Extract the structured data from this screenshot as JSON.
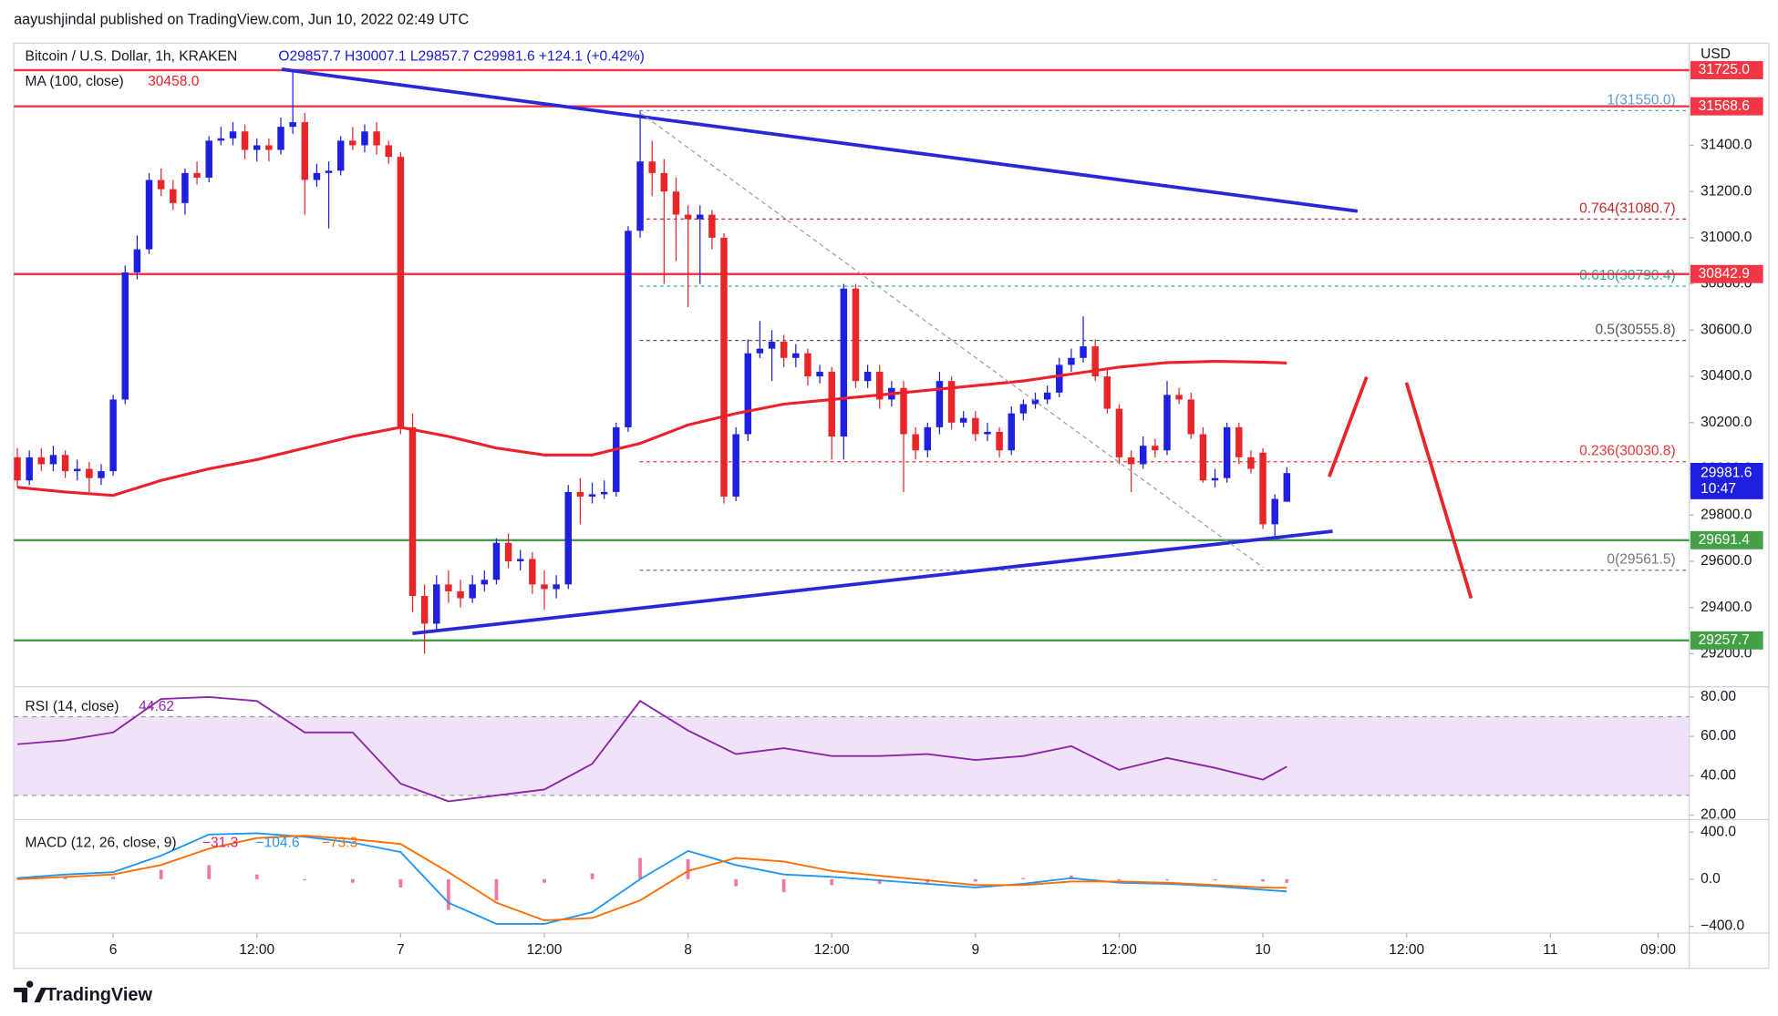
{
  "header": {
    "published": "aayushjindal published on TradingView.com, Jun 10, 2022 02:49 UTC",
    "footer": "TradingView"
  },
  "chart_data": [
    {
      "type": "candlestick",
      "symbol": "Bitcoin / U.S. Dollar, 1h, KRAKEN",
      "ohlc_legend": "O29857.7 H30007.1 L29857.7 C29981.6 +124.1 (+0.42%)",
      "currency": "USD",
      "up_color": "#1f1fe0",
      "down_color": "#e8262a",
      "candles": [
        [
          30050,
          30090,
          29920,
          29950
        ],
        [
          29950,
          30080,
          29930,
          30050
        ],
        [
          30050,
          30090,
          29990,
          30020
        ],
        [
          30020,
          30100,
          29990,
          30060
        ],
        [
          30060,
          30080,
          29960,
          29990
        ],
        [
          29990,
          30040,
          29950,
          30000
        ],
        [
          30000,
          30030,
          29900,
          29960
        ],
        [
          29960,
          30020,
          29930,
          29990
        ],
        [
          29990,
          30320,
          29970,
          30300
        ],
        [
          30300,
          30880,
          30280,
          30850
        ],
        [
          30850,
          31010,
          30820,
          30950
        ],
        [
          30950,
          31280,
          30930,
          31250
        ],
        [
          31250,
          31300,
          31180,
          31210
        ],
        [
          31210,
          31250,
          31120,
          31150
        ],
        [
          31150,
          31300,
          31100,
          31280
        ],
        [
          31280,
          31330,
          31230,
          31260
        ],
        [
          31260,
          31440,
          31240,
          31420
        ],
        [
          31420,
          31480,
          31400,
          31430
        ],
        [
          31430,
          31500,
          31400,
          31460
        ],
        [
          31460,
          31490,
          31340,
          31380
        ],
        [
          31380,
          31430,
          31330,
          31400
        ],
        [
          31400,
          31430,
          31330,
          31380
        ],
        [
          31380,
          31520,
          31360,
          31480
        ],
        [
          31480,
          31720,
          31450,
          31500
        ],
        [
          31500,
          31540,
          31100,
          31250
        ],
        [
          31250,
          31320,
          31220,
          31280
        ],
        [
          31280,
          31330,
          31040,
          31290
        ],
        [
          31290,
          31440,
          31270,
          31420
        ],
        [
          31420,
          31480,
          31380,
          31400
        ],
        [
          31400,
          31490,
          31370,
          31460
        ],
        [
          31460,
          31500,
          31360,
          31400
        ],
        [
          31400,
          31420,
          31320,
          31350
        ],
        [
          31350,
          31370,
          30150,
          30180
        ],
        [
          30180,
          30240,
          29380,
          29450
        ],
        [
          29450,
          29500,
          29200,
          29330
        ],
        [
          29330,
          29540,
          29300,
          29500
        ],
        [
          29500,
          29560,
          29420,
          29470
        ],
        [
          29470,
          29520,
          29400,
          29440
        ],
        [
          29440,
          29540,
          29420,
          29500
        ],
        [
          29500,
          29560,
          29470,
          29520
        ],
        [
          29520,
          29700,
          29500,
          29680
        ],
        [
          29680,
          29720,
          29570,
          29600
        ],
        [
          29600,
          29650,
          29560,
          29610
        ],
        [
          29610,
          29640,
          29460,
          29500
        ],
        [
          29500,
          29560,
          29390,
          29480
        ],
        [
          29480,
          29540,
          29440,
          29500
        ],
        [
          29500,
          29930,
          29480,
          29900
        ],
        [
          29900,
          29960,
          29760,
          29880
        ],
        [
          29880,
          29940,
          29850,
          29890
        ],
        [
          29890,
          29950,
          29870,
          29900
        ],
        [
          29900,
          30200,
          29880,
          30180
        ],
        [
          30180,
          31050,
          30160,
          31030
        ],
        [
          31030,
          31550,
          31000,
          31330
        ],
        [
          31330,
          31420,
          31180,
          31280
        ],
        [
          31280,
          31340,
          30800,
          31200
        ],
        [
          31200,
          31260,
          30900,
          31100
        ],
        [
          31100,
          31140,
          30700,
          31080
        ],
        [
          31080,
          31140,
          30800,
          31100
        ],
        [
          31100,
          31120,
          30950,
          31000
        ],
        [
          31000,
          31020,
          29850,
          29880
        ],
        [
          29880,
          30180,
          29860,
          30150
        ],
        [
          30150,
          30560,
          30120,
          30500
        ],
        [
          30500,
          30640,
          30480,
          30520
        ],
        [
          30520,
          30600,
          30380,
          30550
        ],
        [
          30550,
          30580,
          30440,
          30480
        ],
        [
          30480,
          30540,
          30440,
          30500
        ],
        [
          30500,
          30520,
          30360,
          30400
        ],
        [
          30400,
          30450,
          30370,
          30420
        ],
        [
          30420,
          30440,
          30040,
          30140
        ],
        [
          30140,
          30800,
          30040,
          30780
        ],
        [
          30780,
          30800,
          30350,
          30380
        ],
        [
          30380,
          30450,
          30350,
          30420
        ],
        [
          30420,
          30450,
          30260,
          30300
        ],
        [
          30300,
          30380,
          30270,
          30350
        ],
        [
          30350,
          30380,
          29900,
          30150
        ],
        [
          30150,
          30180,
          30040,
          30080
        ],
        [
          30080,
          30200,
          30050,
          30180
        ],
        [
          30180,
          30420,
          30150,
          30380
        ],
        [
          30380,
          30400,
          30170,
          30200
        ],
        [
          30200,
          30250,
          30180,
          30220
        ],
        [
          30220,
          30250,
          30120,
          30150
        ],
        [
          30150,
          30200,
          30120,
          30160
        ],
        [
          30160,
          30180,
          30050,
          30080
        ],
        [
          30080,
          30270,
          30060,
          30240
        ],
        [
          30240,
          30300,
          30210,
          30280
        ],
        [
          30280,
          30330,
          30260,
          30300
        ],
        [
          30300,
          30360,
          30280,
          30330
        ],
        [
          30330,
          30480,
          30310,
          30450
        ],
        [
          30450,
          30520,
          30420,
          30480
        ],
        [
          30480,
          30660,
          30460,
          30530
        ],
        [
          30530,
          30560,
          30380,
          30400
        ],
        [
          30400,
          30430,
          30240,
          30260
        ],
        [
          30260,
          30280,
          30020,
          30050
        ],
        [
          30050,
          30080,
          29900,
          30020
        ],
        [
          30020,
          30140,
          30000,
          30100
        ],
        [
          30100,
          30130,
          30050,
          30080
        ],
        [
          30080,
          30380,
          30060,
          30320
        ],
        [
          30320,
          30350,
          30280,
          30300
        ],
        [
          30300,
          30330,
          30130,
          30150
        ],
        [
          30150,
          30180,
          29940,
          29950
        ],
        [
          29950,
          30000,
          29920,
          29960
        ],
        [
          29960,
          30200,
          29940,
          30180
        ],
        [
          30180,
          30200,
          30020,
          30050
        ],
        [
          30050,
          30080,
          29980,
          30000
        ],
        [
          30070,
          30090,
          29740,
          29760
        ],
        [
          29760,
          29890,
          29700,
          29870
        ],
        [
          29857.7,
          30007.1,
          29857.7,
          29981.6
        ]
      ],
      "xlim": [
        -0.3,
        139.6
      ],
      "xticks": [
        {
          "value": 8,
          "label": "6"
        },
        {
          "value": 20,
          "label": "12:00"
        },
        {
          "value": 32,
          "label": "7"
        },
        {
          "value": 44,
          "label": "12:00"
        },
        {
          "value": 56,
          "label": "8"
        },
        {
          "value": 68,
          "label": "12:00"
        },
        {
          "value": 80,
          "label": "9"
        },
        {
          "value": 92,
          "label": "12:00"
        },
        {
          "value": 104,
          "label": "10"
        },
        {
          "value": 116,
          "label": "12:00"
        },
        {
          "value": 128,
          "label": "11"
        },
        {
          "value": 137,
          "label": "09:00"
        }
      ],
      "ylim": [
        29057,
        31842
      ],
      "yticks": [
        {
          "value": 29200,
          "label": "29200.0"
        },
        {
          "value": 29400,
          "label": "29400.0"
        },
        {
          "value": 29600,
          "label": "29600.0"
        },
        {
          "value": 29800,
          "label": "29800.0"
        },
        {
          "value": 30000,
          "label": "30000.0"
        },
        {
          "value": 30200,
          "label": "30200.0"
        },
        {
          "value": 30400,
          "label": "30400.0"
        },
        {
          "value": 30600,
          "label": "30600.0"
        },
        {
          "value": 30800,
          "label": "30800.0"
        },
        {
          "value": 31000,
          "label": "31000.0"
        },
        {
          "value": 31200,
          "label": "31200.0"
        },
        {
          "value": 31400,
          "label": "31400.0"
        }
      ],
      "levels": [
        {
          "value": 31725,
          "label": "31725.0",
          "color": "#f23645"
        },
        {
          "value": 31568.6,
          "color": "#f23645"
        },
        {
          "value": 30842.9,
          "color": "#f23645"
        },
        {
          "value": 29691.4,
          "color": "#43a047"
        },
        {
          "value": 29257.7,
          "color": "#43a047"
        }
      ],
      "fib": [
        {
          "value": 31550.0,
          "label": "1(31550.0)",
          "color": "#5b9bd5"
        },
        {
          "value": 31080.7,
          "label": "0.764(31080.7)",
          "color": "#c62828"
        },
        {
          "value": 30790.4,
          "label": "0.618(30790.4)",
          "color": "#26a69a"
        },
        {
          "value": 30555.8,
          "label": "0.5(30555.8)",
          "color": "#555555"
        },
        {
          "value": 30030.8,
          "label": "0.236(30030.8)",
          "color": "#e53935"
        },
        {
          "value": 29561.5,
          "label": "0(29561.5)",
          "color": "#777777"
        }
      ],
      "last_price": {
        "value": 29981.6,
        "countdown": "10:47",
        "color": "#1f1fe0"
      },
      "ma": {
        "name": "MA (100, close)",
        "value_label": "30458.0",
        "color": "#f0202a",
        "x": [
          0,
          4,
          8,
          12,
          16,
          20,
          24,
          28,
          32,
          36,
          40,
          44,
          48,
          52,
          56,
          60,
          64,
          68,
          72,
          76,
          80,
          84,
          88,
          92,
          96,
          100,
          104,
          106
        ],
        "values": [
          29920,
          29900,
          29885,
          29950,
          30000,
          30040,
          30090,
          30140,
          30180,
          30140,
          30090,
          30060,
          30060,
          30110,
          30190,
          30240,
          30280,
          30300,
          30320,
          30340,
          30360,
          30380,
          30410,
          30440,
          30460,
          30465,
          30462,
          30458
        ]
      }
    },
    {
      "type": "line",
      "name": "RSI (14, close)",
      "color": "#8e24aa",
      "band": [
        30,
        70
      ],
      "band_color": "#e6cff5",
      "x": [
        0,
        4,
        8,
        12,
        16,
        20,
        24,
        28,
        32,
        36,
        40,
        44,
        48,
        52,
        56,
        60,
        64,
        68,
        72,
        76,
        80,
        84,
        88,
        92,
        96,
        100,
        104,
        106
      ],
      "values": [
        56,
        58,
        62,
        79,
        80,
        78,
        62,
        62,
        36,
        27,
        30,
        33,
        46,
        78,
        63,
        51,
        54,
        50,
        50,
        51,
        48,
        50,
        55,
        43,
        49,
        44,
        38,
        44.62
      ],
      "ylim": [
        17.7,
        85.2
      ],
      "yticks": [
        {
          "value": 80,
          "label": "80.00"
        },
        {
          "value": 60,
          "label": "60.00"
        },
        {
          "value": 40,
          "label": "40.00"
        },
        {
          "value": 20,
          "label": "20.00"
        }
      ]
    },
    {
      "type": "line",
      "name": "MACD (12, 26, close, 9)",
      "x": [
        0,
        4,
        8,
        12,
        16,
        20,
        24,
        28,
        32,
        36,
        40,
        44,
        48,
        52,
        56,
        60,
        64,
        68,
        72,
        76,
        80,
        84,
        88,
        92,
        96,
        100,
        104,
        106
      ],
      "series": [
        {
          "style": "histogram",
          "color": "#e91e63",
          "value_label": "−31.3",
          "values": [
            10,
            20,
            20,
            80,
            120,
            40,
            -10,
            -30,
            -70,
            -260,
            -180,
            -30,
            50,
            180,
            170,
            -60,
            -110,
            -50,
            -40,
            -30,
            -20,
            10,
            30,
            -10,
            -10,
            -10,
            -20,
            -31.3
          ]
        },
        {
          "style": "line",
          "color": "#2196f3",
          "value_label": "−104.6",
          "values": [
            10,
            40,
            60,
            200,
            380,
            390,
            360,
            310,
            230,
            -200,
            -380,
            -380,
            -280,
            0,
            240,
            120,
            40,
            20,
            -10,
            -40,
            -70,
            -40,
            10,
            -30,
            -40,
            -60,
            -90,
            -104.6
          ]
        },
        {
          "style": "line",
          "color": "#ff6d00",
          "value_label": "−73.3",
          "values": [
            0,
            20,
            40,
            120,
            260,
            350,
            370,
            340,
            300,
            60,
            -200,
            -350,
            -330,
            -180,
            70,
            180,
            150,
            70,
            30,
            -10,
            -50,
            -50,
            -20,
            -20,
            -30,
            -50,
            -70,
            -73.3
          ]
        }
      ],
      "ylim": [
        -458,
        506
      ],
      "yticks": [
        {
          "value": 400,
          "label": "400.0"
        },
        {
          "value": 0,
          "label": "0.0"
        },
        {
          "value": -400,
          "label": "−400.0"
        }
      ]
    }
  ]
}
